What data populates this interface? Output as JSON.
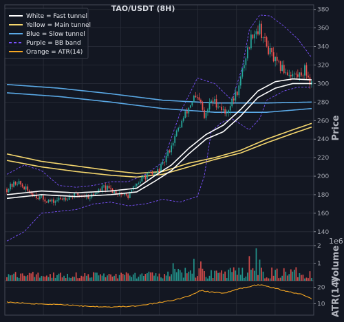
{
  "colors": {
    "background": "#131722",
    "grid": "#2a2e39",
    "axis_text": "#a3a6af",
    "fast_tunnel": "#ffffff",
    "main_tunnel": "#f5d76e",
    "slow_tunnel": "#5aa9e6",
    "bb_band": "#7b52ff",
    "atr": "#f5a623",
    "up_candle": "#26a69a",
    "down_candle": "#ef5350"
  },
  "chart_data": {
    "type": "candlestick",
    "title": "TAO/USDT (8H)",
    "price_panel": {
      "ylabel": "Price",
      "ylim": [
        125,
        385
      ],
      "yticks": [
        140,
        160,
        180,
        200,
        220,
        240,
        260,
        280,
        300,
        320,
        340,
        360,
        380
      ],
      "grid": true,
      "legend_placement": "top-left",
      "legend": [
        {
          "label": "White = Fast tunnel",
          "color": "#ffffff",
          "style": "solid"
        },
        {
          "label": "Yellow = Main tunnel",
          "color": "#f5d76e",
          "style": "solid"
        },
        {
          "label": "Blue = Slow tunnel",
          "color": "#5aa9e6",
          "style": "solid"
        },
        {
          "label": "Purple = BB band",
          "color": "#7b52ff",
          "style": "dashed"
        },
        {
          "label": "Orange = ATR(14)",
          "color": "#f5a623",
          "style": "solid"
        }
      ],
      "close_anchors": [
        [
          0,
          186
        ],
        [
          6,
          194
        ],
        [
          12,
          184
        ],
        [
          20,
          176
        ],
        [
          26,
          172
        ],
        [
          32,
          176
        ],
        [
          40,
          180
        ],
        [
          48,
          178
        ],
        [
          56,
          188
        ],
        [
          64,
          182
        ],
        [
          70,
          178
        ],
        [
          74,
          190
        ],
        [
          80,
          200
        ],
        [
          86,
          203
        ],
        [
          90,
          212
        ],
        [
          96,
          238
        ],
        [
          100,
          255
        ],
        [
          104,
          270
        ],
        [
          108,
          285
        ],
        [
          112,
          278
        ],
        [
          114,
          262
        ],
        [
          118,
          282
        ],
        [
          122,
          278
        ],
        [
          126,
          268
        ],
        [
          130,
          280
        ],
        [
          134,
          296
        ],
        [
          138,
          330
        ],
        [
          142,
          355
        ],
        [
          146,
          360
        ],
        [
          150,
          340
        ],
        [
          156,
          320
        ],
        [
          162,
          312
        ],
        [
          168,
          308
        ],
        [
          172,
          315
        ],
        [
          176,
          300
        ]
      ],
      "fast_tunnel": {
        "upper": [
          [
            0,
            180
          ],
          [
            20,
            184
          ],
          [
            40,
            182
          ],
          [
            60,
            184
          ],
          [
            75,
            187
          ],
          [
            85,
            200
          ],
          [
            95,
            212
          ],
          [
            105,
            230
          ],
          [
            115,
            245
          ],
          [
            125,
            255
          ],
          [
            135,
            272
          ],
          [
            145,
            292
          ],
          [
            155,
            302
          ],
          [
            165,
            305
          ],
          [
            176,
            304
          ]
        ],
        "lower": [
          [
            0,
            176
          ],
          [
            20,
            180
          ],
          [
            40,
            178
          ],
          [
            60,
            180
          ],
          [
            75,
            183
          ],
          [
            85,
            194
          ],
          [
            95,
            206
          ],
          [
            105,
            224
          ],
          [
            115,
            240
          ],
          [
            125,
            248
          ],
          [
            135,
            265
          ],
          [
            145,
            285
          ],
          [
            155,
            295
          ],
          [
            165,
            300
          ],
          [
            176,
            300
          ]
        ]
      },
      "main_tunnel": {
        "upper": [
          [
            0,
            224
          ],
          [
            20,
            216
          ],
          [
            40,
            211
          ],
          [
            60,
            206
          ],
          [
            75,
            203
          ],
          [
            90,
            205
          ],
          [
            105,
            214
          ],
          [
            120,
            220
          ],
          [
            135,
            228
          ],
          [
            150,
            240
          ],
          [
            165,
            250
          ],
          [
            176,
            257
          ]
        ],
        "lower": [
          [
            0,
            217
          ],
          [
            20,
            210
          ],
          [
            40,
            205
          ],
          [
            60,
            201
          ],
          [
            75,
            199
          ],
          [
            90,
            202
          ],
          [
            105,
            210
          ],
          [
            120,
            218
          ],
          [
            135,
            225
          ],
          [
            150,
            236
          ],
          [
            165,
            246
          ],
          [
            176,
            253
          ]
        ]
      },
      "slow_tunnel": {
        "upper": [
          [
            0,
            299
          ],
          [
            30,
            295
          ],
          [
            60,
            289
          ],
          [
            90,
            282
          ],
          [
            120,
            279
          ],
          [
            150,
            279
          ],
          [
            176,
            280
          ]
        ],
        "lower": [
          [
            0,
            290
          ],
          [
            30,
            286
          ],
          [
            60,
            280
          ],
          [
            90,
            273
          ],
          [
            120,
            269
          ],
          [
            150,
            269
          ],
          [
            176,
            273
          ]
        ]
      },
      "bb_band": {
        "upper": [
          [
            0,
            202
          ],
          [
            10,
            212
          ],
          [
            20,
            206
          ],
          [
            30,
            190
          ],
          [
            40,
            188
          ],
          [
            50,
            190
          ],
          [
            60,
            194
          ],
          [
            70,
            194
          ],
          [
            80,
            202
          ],
          [
            90,
            215
          ],
          [
            100,
            268
          ],
          [
            110,
            306
          ],
          [
            120,
            300
          ],
          [
            130,
            282
          ],
          [
            136,
            318
          ],
          [
            140,
            358
          ],
          [
            146,
            374
          ],
          [
            152,
            373
          ],
          [
            160,
            362
          ],
          [
            168,
            348
          ],
          [
            176,
            328
          ]
        ],
        "lower": [
          [
            0,
            130
          ],
          [
            10,
            140
          ],
          [
            20,
            160
          ],
          [
            30,
            162
          ],
          [
            40,
            164
          ],
          [
            50,
            170
          ],
          [
            60,
            172
          ],
          [
            70,
            168
          ],
          [
            80,
            170
          ],
          [
            90,
            175
          ],
          [
            100,
            172
          ],
          [
            110,
            178
          ],
          [
            114,
            200
          ],
          [
            118,
            248
          ],
          [
            124,
            258
          ],
          [
            130,
            262
          ],
          [
            140,
            250
          ],
          [
            146,
            262
          ],
          [
            150,
            282
          ],
          [
            160,
            292
          ],
          [
            168,
            296
          ],
          [
            176,
            296
          ]
        ]
      }
    },
    "volume_panel": {
      "ylabel": "Volume",
      "scale_label": "1e6",
      "ylim": [
        0,
        2.0
      ],
      "yticks": [
        1,
        2
      ],
      "spike_bars": [
        [
          140,
          1.4
        ],
        [
          144,
          1.85
        ],
        [
          146,
          1.2
        ],
        [
          108,
          1.25
        ],
        [
          112,
          1.1
        ],
        [
          96,
          1.0
        ]
      ]
    },
    "atr_panel": {
      "ylabel": "ATR(14)",
      "ylim": [
        3,
        24
      ],
      "yticks": [
        10,
        20
      ],
      "anchors": [
        [
          0,
          11
        ],
        [
          15,
          10
        ],
        [
          30,
          9.5
        ],
        [
          45,
          8.5
        ],
        [
          60,
          8
        ],
        [
          75,
          8.5
        ],
        [
          90,
          11
        ],
        [
          100,
          13
        ],
        [
          108,
          16
        ],
        [
          112,
          18
        ],
        [
          118,
          17
        ],
        [
          126,
          16.5
        ],
        [
          134,
          19
        ],
        [
          142,
          21
        ],
        [
          148,
          21.5
        ],
        [
          156,
          19
        ],
        [
          164,
          17
        ],
        [
          170,
          16
        ],
        [
          176,
          13
        ]
      ]
    }
  }
}
